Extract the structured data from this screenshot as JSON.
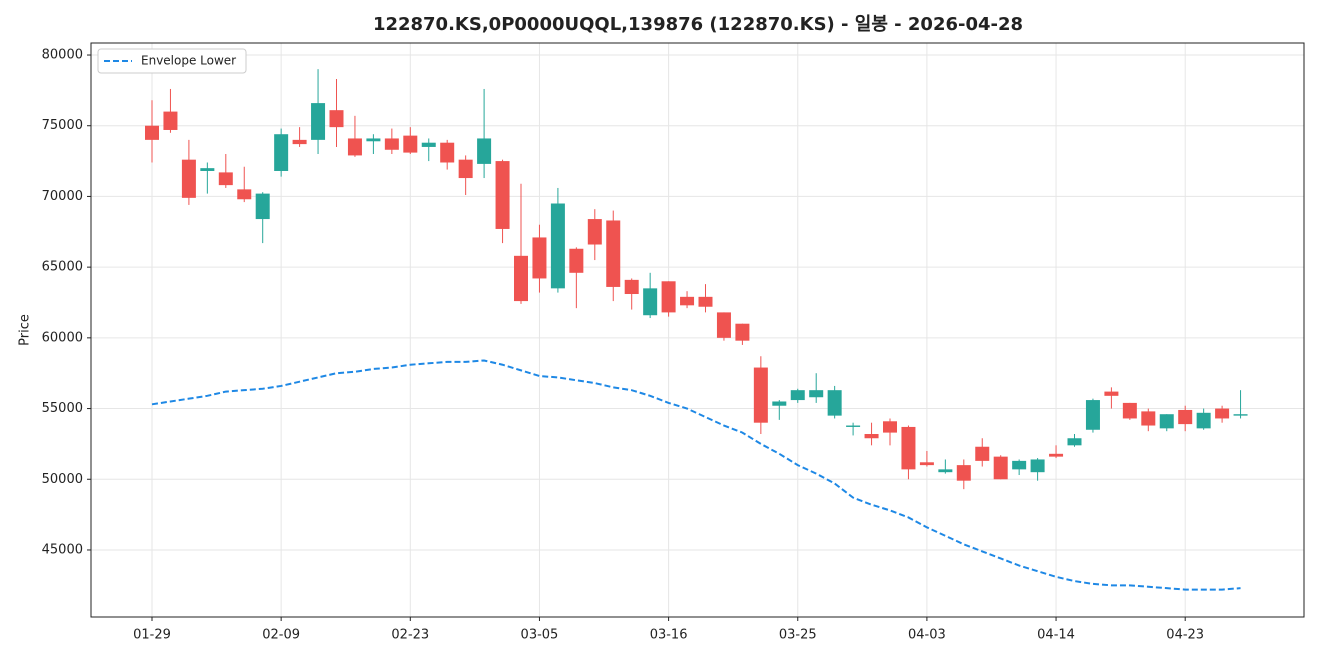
{
  "chart_data": {
    "type": "candlestick",
    "title": "122870.KS,0P0000UQQL,139876 (122870.KS) - 일봉 - 2026-04-28",
    "y_label": "Price",
    "categories": [
      "01-29",
      null,
      null,
      null,
      null,
      null,
      null,
      "02-09",
      null,
      null,
      null,
      null,
      null,
      null,
      "02-23",
      null,
      null,
      null,
      null,
      null,
      null,
      "03-05",
      null,
      null,
      null,
      null,
      null,
      null,
      "03-16",
      null,
      null,
      null,
      null,
      null,
      null,
      "03-25",
      null,
      null,
      null,
      null,
      null,
      null,
      "04-03",
      null,
      null,
      null,
      null,
      null,
      null,
      "04-14",
      null,
      null,
      null,
      null,
      null,
      null,
      "04-23",
      null,
      null,
      null
    ],
    "open": [
      75000,
      76000,
      72600,
      71800,
      71700,
      70500,
      68400,
      71800,
      74000,
      74000,
      76100,
      74100,
      73900,
      74100,
      74300,
      73500,
      73800,
      72600,
      72300,
      72500,
      65800,
      67100,
      63500,
      66300,
      68400,
      68300,
      64100,
      61600,
      64000,
      62900,
      62900,
      61800,
      61000,
      57900,
      55200,
      55600,
      55800,
      54500,
      53700,
      53200,
      54100,
      53700,
      51200,
      50500,
      51000,
      52300,
      51600,
      50700,
      50500,
      51800,
      52400,
      53500,
      56200,
      55400,
      54800,
      53600,
      54900,
      53600,
      55000,
      54500
    ],
    "high": [
      76800,
      77600,
      74000,
      72400,
      73000,
      72100,
      70300,
      74800,
      74900,
      79000,
      78300,
      75700,
      74400,
      74800,
      74900,
      74100,
      74000,
      72900,
      77600,
      72600,
      70900,
      68000,
      70600,
      66400,
      69100,
      69000,
      64200,
      64600,
      64000,
      63300,
      63800,
      61800,
      61000,
      58700,
      55600,
      56400,
      57500,
      56600,
      54000,
      54000,
      54300,
      53800,
      52000,
      51400,
      51400,
      52900,
      51700,
      51400,
      51500,
      52400,
      53200,
      55700,
      56500,
      55400,
      55000,
      54600,
      55200,
      55000,
      55200,
      56300
    ],
    "low": [
      72400,
      74500,
      69400,
      70200,
      70600,
      69600,
      66700,
      71400,
      73500,
      73000,
      73500,
      72800,
      73000,
      73000,
      73000,
      72500,
      71900,
      70100,
      71300,
      66700,
      62400,
      63200,
      63200,
      62100,
      65500,
      62600,
      62000,
      61400,
      61500,
      62100,
      61800,
      59800,
      59500,
      53200,
      54200,
      55400,
      55400,
      54300,
      53100,
      52400,
      52400,
      50000,
      50900,
      50400,
      49300,
      50900,
      50000,
      50300,
      49900,
      51500,
      52300,
      53300,
      55000,
      54200,
      53400,
      53400,
      53400,
      53500,
      54000,
      54300
    ],
    "close": [
      74000,
      74700,
      69900,
      72000,
      70800,
      69800,
      70200,
      74400,
      73700,
      76600,
      74900,
      72900,
      74100,
      73300,
      73100,
      73800,
      72400,
      71300,
      74100,
      67700,
      62600,
      64200,
      69500,
      64600,
      66600,
      63600,
      63100,
      63500,
      61800,
      62300,
      62200,
      60000,
      59800,
      54000,
      55500,
      56300,
      56300,
      56300,
      53800,
      52900,
      53300,
      50700,
      51000,
      50700,
      49900,
      51300,
      50000,
      51300,
      51400,
      51600,
      52900,
      55600,
      55900,
      54300,
      53800,
      54600,
      53900,
      54700,
      54300,
      54600
    ],
    "up_color": "#26a69a",
    "down_color": "#ef5350",
    "series": [
      {
        "name": "Envelope Lower",
        "color": "#1e88e5",
        "values": [
          55300,
          55500,
          55700,
          55900,
          56200,
          56300,
          56400,
          56600,
          56900,
          57200,
          57500,
          57600,
          57800,
          57900,
          58100,
          58200,
          58300,
          58300,
          58400,
          58100,
          57700,
          57300,
          57200,
          57000,
          56800,
          56500,
          56300,
          55900,
          55400,
          55000,
          54400,
          53800,
          53300,
          52500,
          51800,
          51000,
          50400,
          49700,
          48700,
          48200,
          47800,
          47300,
          46600,
          46000,
          45400,
          44900,
          44400,
          43900,
          43500,
          43100,
          42800,
          42600,
          42500,
          42500,
          42400,
          42300,
          42200,
          42200,
          42200,
          42300
        ]
      }
    ],
    "ylim": [
      40260,
      80850
    ],
    "yticks": [
      45000,
      50000,
      55000,
      60000,
      65000,
      70000,
      75000,
      80000
    ],
    "grid": true,
    "legend": "upper left"
  }
}
